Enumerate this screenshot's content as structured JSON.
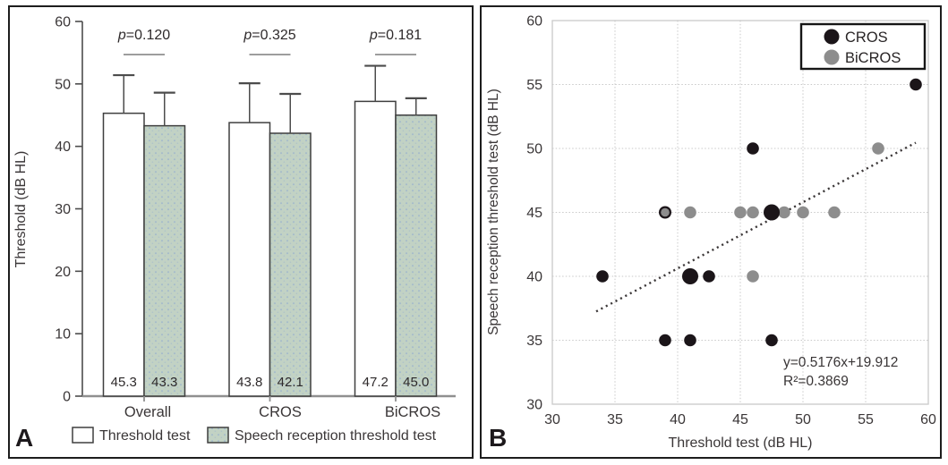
{
  "chart_data": [
    {
      "type": "bar",
      "panel_label": "A",
      "ylabel": "Threshold (dB HL)",
      "ylim": [
        0,
        60
      ],
      "yticks": [
        0,
        10,
        20,
        30,
        40,
        50,
        60
      ],
      "categories": [
        "Overall",
        "CROS",
        "BiCROS"
      ],
      "series": [
        {
          "name": "Threshold test",
          "fill": "white",
          "values": [
            45.3,
            43.8,
            47.2
          ],
          "errors_up": [
            6.1,
            6.3,
            5.7
          ]
        },
        {
          "name": "Speech reception threshold test",
          "fill": "green-dotted",
          "values": [
            43.3,
            42.1,
            45.0
          ],
          "errors_up": [
            5.3,
            6.3,
            2.7
          ]
        }
      ],
      "p_values": [
        "p=0.120",
        "p=0.325",
        "p=0.181"
      ],
      "legend": [
        "Threshold test",
        "Speech reception threshold test"
      ],
      "legend_position": "bottom",
      "grid": false,
      "value_labels_shown": true
    },
    {
      "type": "scatter",
      "panel_label": "B",
      "xlabel": "Threshold test (dB HL)",
      "ylabel": "Speech reception threshold test (dB HL)",
      "xlim": [
        30,
        60
      ],
      "ylim": [
        30,
        60
      ],
      "xticks": [
        30,
        35,
        40,
        45,
        50,
        55,
        60
      ],
      "yticks": [
        30,
        35,
        40,
        45,
        50,
        55,
        60
      ],
      "grid": true,
      "legend": [
        "CROS",
        "BiCROS"
      ],
      "legend_position": "top-right",
      "series": [
        {
          "name": "CROS",
          "color": "#1b1519",
          "points": [
            [
              34,
              40
            ],
            [
              39,
              35
            ],
            [
              41,
              35
            ],
            [
              41,
              40,
              "large"
            ],
            [
              42.5,
              40
            ],
            [
              46,
              50
            ],
            [
              47.5,
              35
            ],
            [
              47.5,
              45,
              "large"
            ],
            [
              59,
              55
            ]
          ],
          "points_under": [
            [
              39,
              45
            ]
          ]
        },
        {
          "name": "BiCROS",
          "color": "#8d8d8d",
          "points": [
            [
              39,
              45,
              "small"
            ],
            [
              41,
              45
            ],
            [
              45,
              45
            ],
            [
              46,
              40
            ],
            [
              46,
              45
            ],
            [
              48.5,
              45
            ],
            [
              50,
              45
            ],
            [
              52.5,
              45
            ],
            [
              56,
              50
            ]
          ]
        }
      ],
      "trendline": {
        "style": "dotted",
        "slope": 0.5176,
        "intercept": 19.912,
        "x_range": [
          33.5,
          59
        ],
        "equation_label": "y=0.5176x+19.912",
        "r2_label": "R²=0.3869"
      }
    }
  ],
  "colors": {
    "bar_green_fill": "#c2d2c4",
    "bar_green_dot": "#a0b8cc",
    "bar_stroke": "#3f3f3f",
    "cros_black": "#1b1519",
    "bicros_gray": "#8d8d8d",
    "grid_gray": "#c9c9c9",
    "text_dark": "#3a3637",
    "axis_gray": "#8f8f8f",
    "panel_border": "#1d1d1d"
  }
}
